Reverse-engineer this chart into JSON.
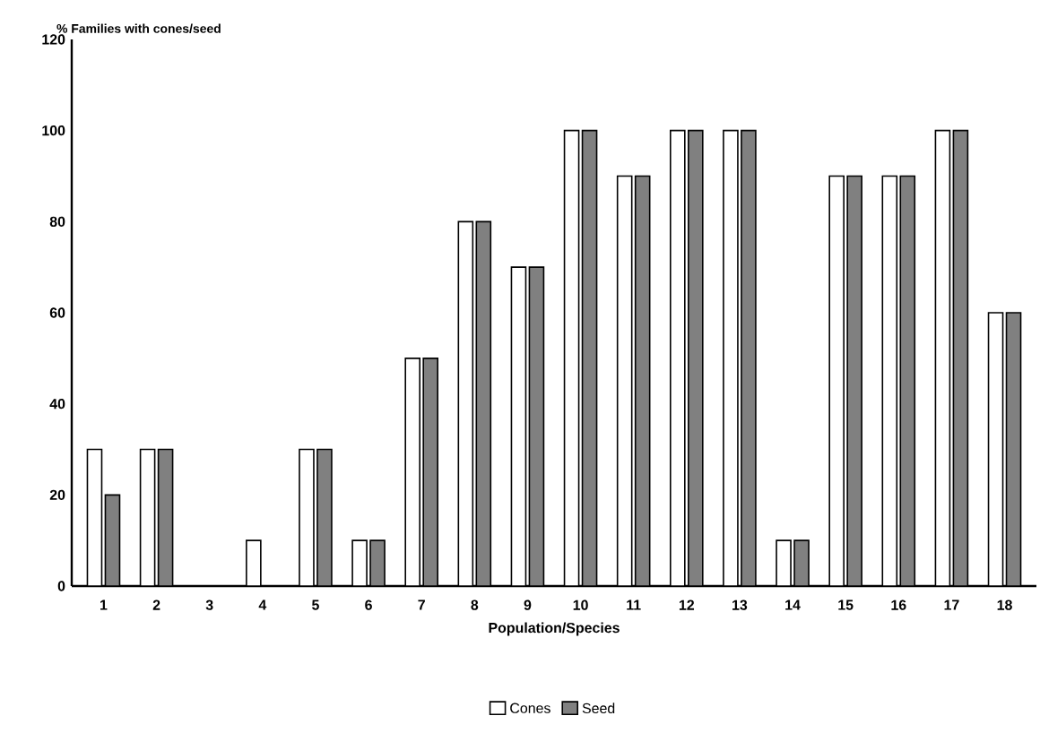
{
  "chart_data": {
    "type": "bar",
    "ylabel": "% Families with cones/seed",
    "xlabel": "Population/Species",
    "categories": [
      "1",
      "2",
      "3",
      "4",
      "5",
      "6",
      "7",
      "8",
      "9",
      "10",
      "11",
      "12",
      "13",
      "14",
      "15",
      "16",
      "17",
      "18"
    ],
    "series": [
      {
        "name": "Cones",
        "color": "#ffffff",
        "values": [
          30,
          30,
          0,
          10,
          30,
          10,
          50,
          80,
          70,
          100,
          90,
          100,
          100,
          10,
          90,
          90,
          100,
          60
        ]
      },
      {
        "name": "Seed",
        "color": "#808080",
        "values": [
          20,
          30,
          0,
          0,
          30,
          10,
          50,
          80,
          70,
          100,
          90,
          100,
          100,
          10,
          90,
          90,
          100,
          60
        ]
      }
    ],
    "ylim": [
      0,
      120
    ],
    "yticks": [
      0,
      20,
      40,
      60,
      80,
      100,
      120
    ],
    "grid": false,
    "legend": "bottom"
  }
}
